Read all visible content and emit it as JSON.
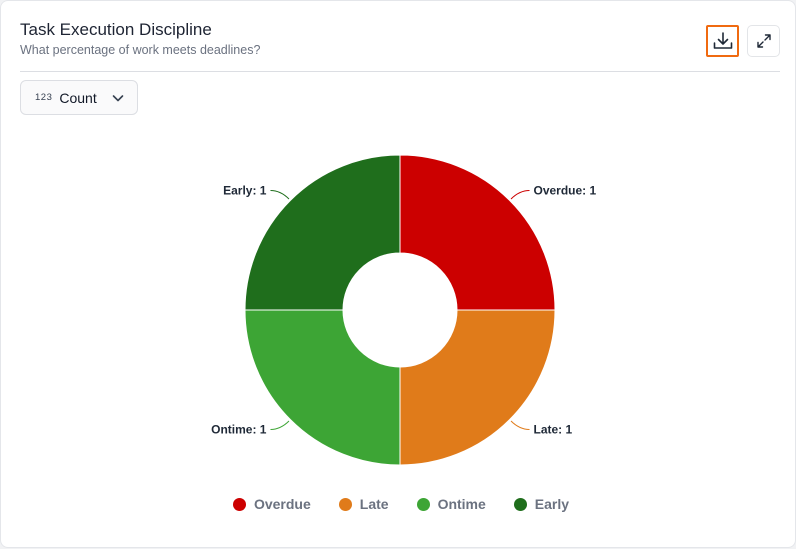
{
  "header": {
    "title": "Task Execution Discipline",
    "subtitle": "What percentage of work meets deadlines?"
  },
  "toolbar": {
    "download_icon": "download-icon",
    "expand_icon": "expand-icon"
  },
  "metric_select": {
    "icon_text": "123",
    "value": "Count"
  },
  "chart_data": {
    "type": "pie",
    "variant": "donut",
    "title": "",
    "legend_position": "bottom",
    "categories": [
      "Overdue",
      "Late",
      "Ontime",
      "Early"
    ],
    "values": [
      1,
      1,
      1,
      1
    ],
    "colors": [
      "#cc0000",
      "#e07b1a",
      "#3da535",
      "#1f6e1c"
    ],
    "data_labels": [
      "Overdue: 1",
      "Late: 1",
      "Ontime: 1",
      "Early: 1"
    ]
  }
}
